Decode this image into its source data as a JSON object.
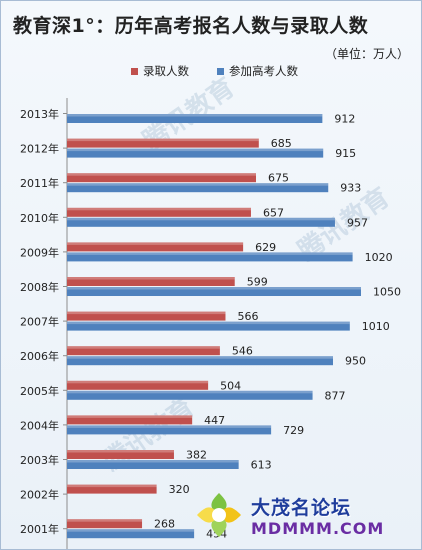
{
  "title": "教育深1°：历年高考报名人数与录取人数",
  "unit_label": "（单位：万人）",
  "watermark_text": "腾讯教育",
  "badge": {
    "name": "大茂名论坛",
    "url": "MDMMM.COM"
  },
  "colors": {
    "admitted": "#c0504d",
    "applicants": "#4f81bd"
  },
  "chart_data": {
    "type": "bar",
    "orientation": "horizontal",
    "categories": [
      "2013年",
      "2012年",
      "2011年",
      "2010年",
      "2009年",
      "2008年",
      "2007年",
      "2006年",
      "2005年",
      "2004年",
      "2003年",
      "2002年",
      "2001年"
    ],
    "series": [
      {
        "name": "录取人数",
        "values": [
          null,
          685,
          675,
          657,
          629,
          599,
          566,
          546,
          504,
          447,
          382,
          320,
          268
        ]
      },
      {
        "name": "参加高考人数",
        "values": [
          912,
          915,
          933,
          957,
          1020,
          1050,
          1010,
          950,
          877,
          729,
          613,
          null,
          454
        ]
      }
    ],
    "value_labels": [
      [
        null,
        "685",
        "675",
        "657",
        "629",
        "599",
        "566",
        "546",
        "504",
        "447",
        "382",
        "320",
        "268"
      ],
      [
        "912",
        "915",
        "933",
        "957",
        "1020",
        "1050",
        "1010",
        "950",
        "877",
        "729",
        "613",
        null,
        "454"
      ]
    ],
    "xlim": [
      0,
      1100
    ],
    "legend_position": "top",
    "grid": false
  }
}
